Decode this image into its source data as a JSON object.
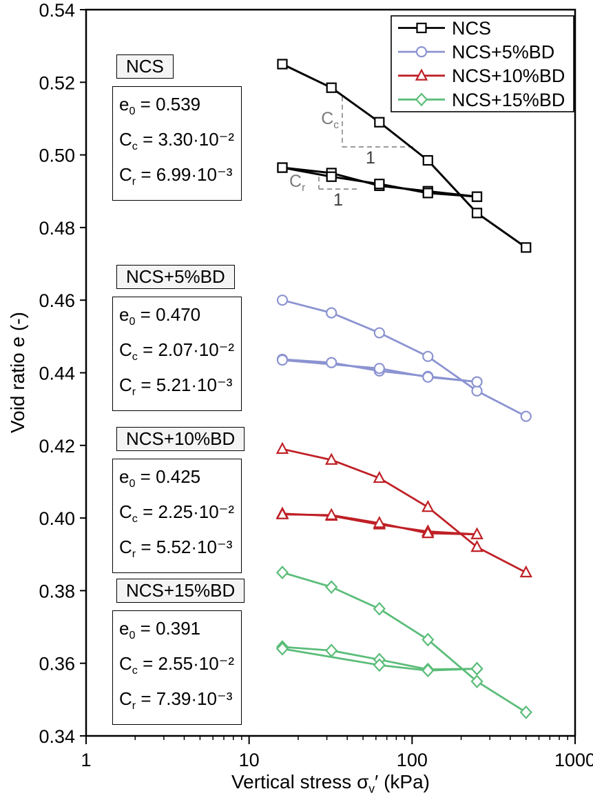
{
  "axes": {
    "ylabel": "Void ratio e (-)",
    "xlabel_pre": "Vertical stress σ",
    "xlabel_sub": "v",
    "xlabel_post": "′ (kPa)"
  },
  "boxes": [
    {
      "title": "NCS",
      "lines": [
        {
          "sym": "e",
          "sub": "0",
          "val": " = 0.539"
        },
        {
          "sym": "C",
          "sub": "c",
          "val": " = 3.30·10⁻²"
        },
        {
          "sym": "C",
          "sub": "r",
          "val": " = 6.99·10⁻³"
        }
      ]
    },
    {
      "title": "NCS+5%BD",
      "lines": [
        {
          "sym": "e",
          "sub": "0",
          "val": " = 0.470"
        },
        {
          "sym": "C",
          "sub": "c",
          "val": " = 2.07·10⁻²"
        },
        {
          "sym": "C",
          "sub": "r",
          "val": " = 5.21·10⁻³"
        }
      ]
    },
    {
      "title": "NCS+10%BD",
      "lines": [
        {
          "sym": "e",
          "sub": "0",
          "val": " = 0.425"
        },
        {
          "sym": "C",
          "sub": "c",
          "val": " = 2.25·10⁻²"
        },
        {
          "sym": "C",
          "sub": "r",
          "val": " = 5.52·10⁻³"
        }
      ]
    },
    {
      "title": "NCS+15%BD",
      "lines": [
        {
          "sym": "e",
          "sub": "0",
          "val": " = 0.391"
        },
        {
          "sym": "C",
          "sub": "c",
          "val": " = 2.55·10⁻²"
        },
        {
          "sym": "C",
          "sub": "r",
          "val": " = 7.39·10⁻³"
        }
      ]
    }
  ],
  "chart_data": {
    "type": "line",
    "title": "",
    "xscale": "log",
    "xlim": [
      1,
      1000
    ],
    "ylim": [
      0.34,
      0.54
    ],
    "xticks": [
      1,
      10,
      100,
      1000
    ],
    "yticks": [
      0.34,
      0.36,
      0.38,
      0.4,
      0.42,
      0.44,
      0.46,
      0.48,
      0.5,
      0.52,
      0.54
    ],
    "xlabel": "Vertical stress σv′ (kPa)",
    "ylabel": "Void ratio e (-)",
    "grid": false,
    "legend_position": "top-right",
    "series": [
      {
        "name": "NCS",
        "color": "#000000",
        "marker": "square",
        "branches": {
          "loading": [
            [
              16,
              0.525
            ],
            [
              32,
              0.5185
            ],
            [
              63,
              0.509
            ],
            [
              125,
              0.4985
            ],
            [
              250,
              0.484
            ],
            [
              500,
              0.4745
            ]
          ],
          "unloading": [
            [
              250,
              0.4885
            ],
            [
              125,
              0.49
            ],
            [
              63,
              0.4915
            ],
            [
              32,
              0.495
            ],
            [
              16,
              0.4965
            ]
          ],
          "reloading": [
            [
              16,
              0.4965
            ],
            [
              32,
              0.494
            ],
            [
              63,
              0.492
            ],
            [
              125,
              0.4895
            ],
            [
              250,
              0.4885
            ]
          ]
        }
      },
      {
        "name": "NCS+5%BD",
        "color": "#8b93d1",
        "marker": "circle",
        "branches": {
          "loading": [
            [
              16,
              0.46
            ],
            [
              32,
              0.4565
            ],
            [
              63,
              0.451
            ],
            [
              125,
              0.4445
            ],
            [
              250,
              0.435
            ],
            [
              500,
              0.428
            ]
          ],
          "unloading": [
            [
              250,
              0.4375
            ],
            [
              125,
              0.439
            ],
            [
              63,
              0.4405
            ],
            [
              32,
              0.4428
            ],
            [
              16,
              0.4437
            ]
          ],
          "reloading": [
            [
              16,
              0.4435
            ],
            [
              63,
              0.4412
            ],
            [
              125,
              0.4388
            ],
            [
              250,
              0.4375
            ]
          ]
        }
      },
      {
        "name": "NCS+10%BD",
        "color": "#bf2026",
        "marker": "triangle",
        "branches": {
          "loading": [
            [
              16,
              0.419
            ],
            [
              32,
              0.416
            ],
            [
              63,
              0.411
            ],
            [
              125,
              0.403
            ],
            [
              250,
              0.392
            ],
            [
              500,
              0.385
            ]
          ],
          "unloading": [
            [
              250,
              0.3955
            ],
            [
              125,
              0.3963
            ],
            [
              63,
              0.3982
            ],
            [
              32,
              0.4006
            ],
            [
              16,
              0.4012
            ]
          ],
          "reloading": [
            [
              16,
              0.401
            ],
            [
              32,
              0.4008
            ],
            [
              63,
              0.3986
            ],
            [
              125,
              0.3958
            ],
            [
              250,
              0.3955
            ]
          ]
        }
      },
      {
        "name": "NCS+15%BD",
        "color": "#5bbd79",
        "marker": "diamond",
        "branches": {
          "loading": [
            [
              16,
              0.385
            ],
            [
              32,
              0.381
            ],
            [
              63,
              0.375
            ],
            [
              125,
              0.3665
            ],
            [
              250,
              0.355
            ],
            [
              500,
              0.3465
            ]
          ],
          "unloading": [
            [
              250,
              0.3585
            ],
            [
              125,
              0.3583
            ],
            [
              63,
              0.361
            ],
            [
              32,
              0.3635
            ],
            [
              16,
              0.3645
            ]
          ],
          "reloading": [
            [
              16,
              0.364
            ],
            [
              63,
              0.3595
            ],
            [
              125,
              0.358
            ],
            [
              250,
              0.3585
            ]
          ]
        }
      }
    ],
    "slope_annotations": {
      "cc": {
        "sym": "C",
        "sub": "c"
      },
      "cr": {
        "sym": "C",
        "sub": "r"
      },
      "unit_run": "1",
      "segments": [
        {
          "x1": 37.3,
          "e1": 0.5161,
          "x2": 37.3,
          "e2": 0.5022
        },
        {
          "x1": 37.3,
          "e1": 0.5022,
          "x2": 101.6,
          "e2": 0.5022
        },
        {
          "x1": 26.8,
          "e1": 0.494,
          "x2": 26.8,
          "e2": 0.4906
        },
        {
          "x1": 26.8,
          "e1": 0.4906,
          "x2": 46.7,
          "e2": 0.4906
        }
      ]
    }
  }
}
